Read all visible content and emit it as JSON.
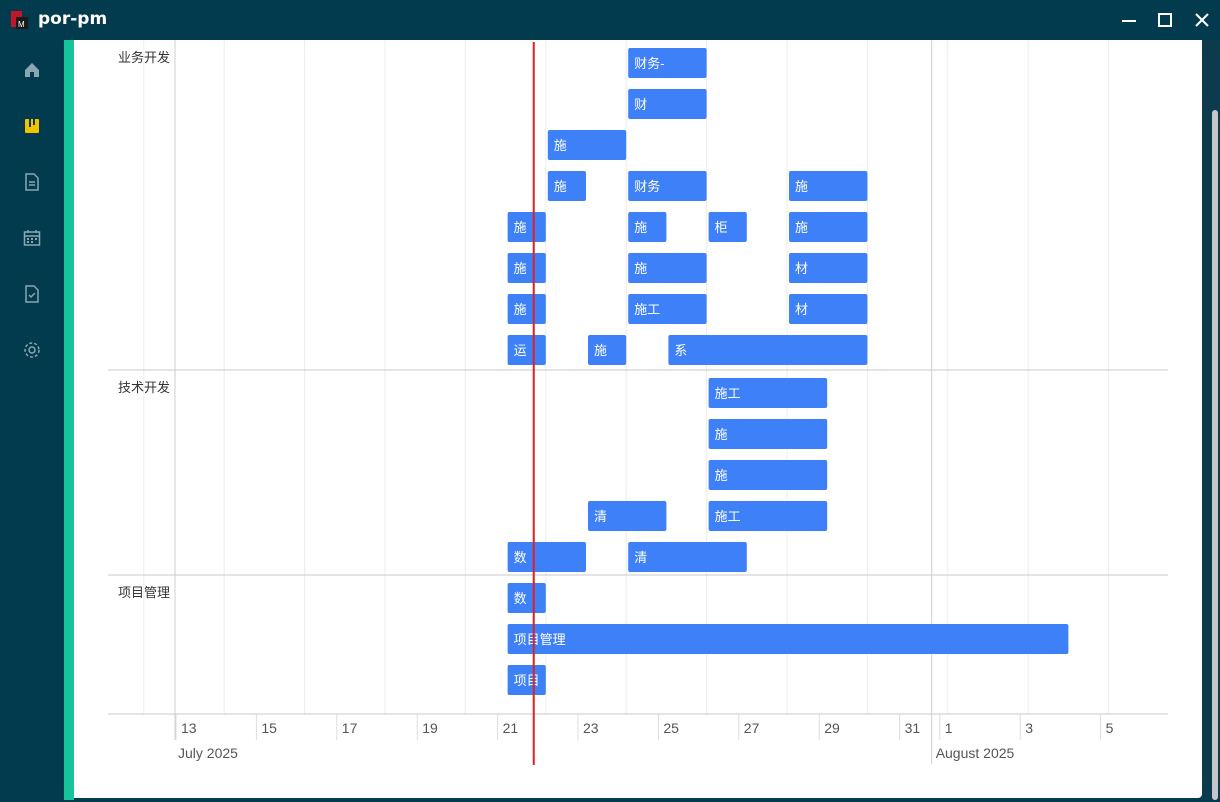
{
  "window": {
    "title": "por-pm",
    "controls": [
      "minimize-icon",
      "maximize-icon",
      "close-icon"
    ]
  },
  "sidebar": {
    "items": [
      {
        "icon": "home-icon",
        "active": false
      },
      {
        "icon": "projects-icon",
        "active": true
      },
      {
        "icon": "document-icon",
        "active": false
      },
      {
        "icon": "calendar-icon",
        "active": false
      },
      {
        "icon": "task-check-icon",
        "active": false
      },
      {
        "icon": "settings-icon",
        "active": false
      }
    ]
  },
  "colors": {
    "bar": "#3e80f7",
    "today_line": "#e02020",
    "accent": "#17c49a",
    "frame": "#023a4e"
  },
  "gantt": {
    "today": "2025-07-21.7",
    "groups": [
      {
        "name": "业务开发",
        "tasks": [
          {
            "label": "财务-",
            "start": 24,
            "end": 26,
            "row": 0
          },
          {
            "label": "财",
            "start": 24,
            "end": 26,
            "row": 1
          },
          {
            "label": "施",
            "start": 22,
            "end": 24,
            "row": 2
          },
          {
            "label": "施",
            "start": 22,
            "end": 23,
            "row": 3
          },
          {
            "label": "财务",
            "start": 24,
            "end": 26,
            "row": 3
          },
          {
            "label": "施",
            "start": 28,
            "end": 30,
            "row": 3
          },
          {
            "label": "施",
            "start": 21,
            "end": 22,
            "row": 4
          },
          {
            "label": "施",
            "start": 24,
            "end": 25,
            "row": 4
          },
          {
            "label": "柜",
            "start": 26,
            "end": 27,
            "row": 4
          },
          {
            "label": "施",
            "start": 28,
            "end": 30,
            "row": 4
          },
          {
            "label": "施",
            "start": 21,
            "end": 22,
            "row": 5
          },
          {
            "label": "施",
            "start": 24,
            "end": 26,
            "row": 5
          },
          {
            "label": "材",
            "start": 28,
            "end": 30,
            "row": 5
          },
          {
            "label": "施",
            "start": 21,
            "end": 22,
            "row": 6
          },
          {
            "label": "施工",
            "start": 24,
            "end": 26,
            "row": 6
          },
          {
            "label": "材",
            "start": 28,
            "end": 30,
            "row": 6
          },
          {
            "label": "运",
            "start": 21,
            "end": 22,
            "row": 7
          },
          {
            "label": "施",
            "start": 23,
            "end": 24,
            "row": 7
          },
          {
            "label": "系",
            "start": 25,
            "end": 30,
            "row": 7
          }
        ]
      },
      {
        "name": "技术开发",
        "tasks": [
          {
            "label": "施工",
            "start": 26,
            "end": 29,
            "row": 0
          },
          {
            "label": "施",
            "start": 26,
            "end": 29,
            "row": 1
          },
          {
            "label": "施",
            "start": 26,
            "end": 29,
            "row": 2
          },
          {
            "label": "清",
            "start": 23,
            "end": 25,
            "row": 3
          },
          {
            "label": "施工",
            "start": 26,
            "end": 29,
            "row": 3
          },
          {
            "label": "数",
            "start": 21,
            "end": 23,
            "row": 4
          },
          {
            "label": "清",
            "start": 24,
            "end": 27,
            "row": 4
          }
        ]
      },
      {
        "name": "项目管理",
        "tasks": [
          {
            "label": "数",
            "start": 21,
            "end": 22,
            "row": 0
          },
          {
            "label": "项目管理",
            "start": 21,
            "end": 35,
            "row": 1
          },
          {
            "label": "项目",
            "start": 21,
            "end": 22,
            "row": 2
          }
        ]
      }
    ],
    "axis": {
      "ticks": [
        "13",
        "15",
        "17",
        "19",
        "21",
        "23",
        "25",
        "27",
        "29",
        "31",
        "1",
        "3",
        "5"
      ],
      "months": [
        "July 2025",
        "August 2025"
      ]
    }
  }
}
